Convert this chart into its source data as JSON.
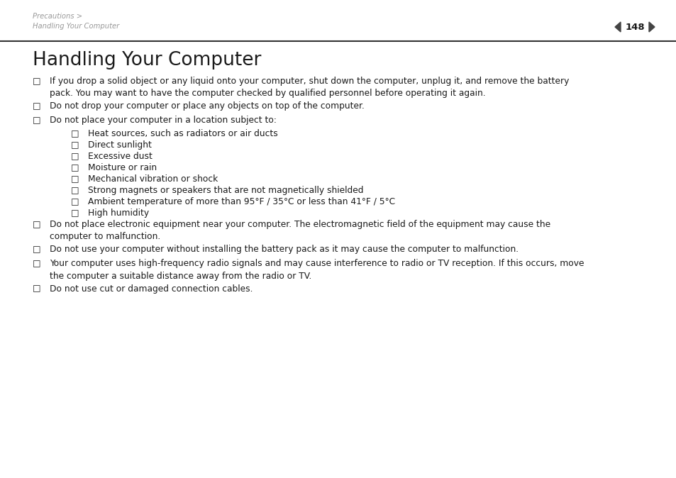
{
  "bg_color": "#ffffff",
  "breadcrumb1": "Precautions >",
  "breadcrumb2": "Handling Your Computer",
  "header_page": "148",
  "title": "Handling Your Computer",
  "title_fontsize": 19,
  "body_fontsize": 8.8,
  "text_color": "#1a1a1a",
  "gray_color": "#999999",
  "items": [
    {
      "level": 0,
      "text": "If you drop a solid object or any liquid onto your computer, shut down the computer, unplug it, and remove the battery\npack. You may want to have the computer checked by qualified personnel before operating it again."
    },
    {
      "level": 0,
      "text": "Do not drop your computer or place any objects on top of the computer."
    },
    {
      "level": 0,
      "text": "Do not place your computer in a location subject to:"
    },
    {
      "level": 1,
      "text": "Heat sources, such as radiators or air ducts"
    },
    {
      "level": 1,
      "text": "Direct sunlight"
    },
    {
      "level": 1,
      "text": "Excessive dust"
    },
    {
      "level": 1,
      "text": "Moisture or rain"
    },
    {
      "level": 1,
      "text": "Mechanical vibration or shock"
    },
    {
      "level": 1,
      "text": "Strong magnets or speakers that are not magnetically shielded"
    },
    {
      "level": 1,
      "text": "Ambient temperature of more than 95°F / 35°C or less than 41°F / 5°C"
    },
    {
      "level": 1,
      "text": "High humidity"
    },
    {
      "level": 0,
      "text": "Do not place electronic equipment near your computer. The electromagnetic field of the equipment may cause the\ncomputer to malfunction."
    },
    {
      "level": 0,
      "text": "Do not use your computer without installing the battery pack as it may cause the computer to malfunction."
    },
    {
      "level": 0,
      "text": "Your computer uses high-frequency radio signals and may cause interference to radio or TV reception. If this occurs, move\nthe computer a suitable distance away from the radio or TV."
    },
    {
      "level": 0,
      "text": "Do not use cut or damaged connection cables."
    }
  ]
}
